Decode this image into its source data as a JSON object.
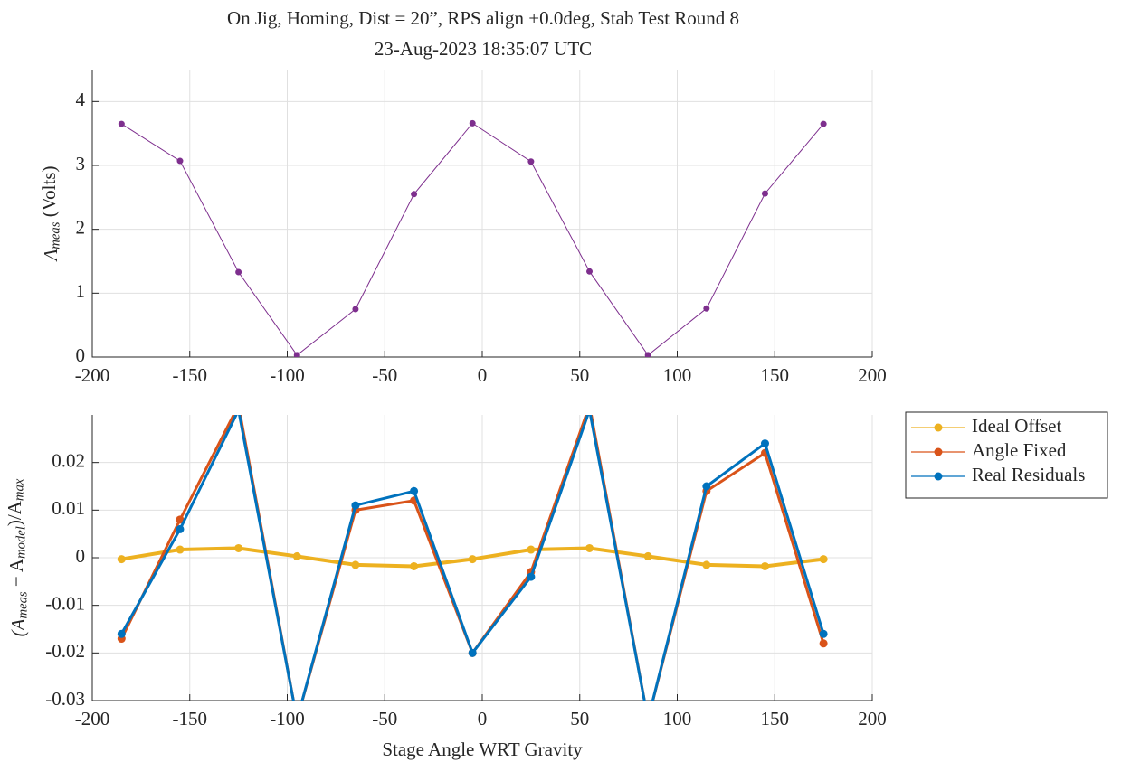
{
  "chart_data": [
    {
      "type": "line",
      "title": [
        "On Jig, Homing, Dist = 20”, RPS align +0.0deg, Stab Test Round 8",
        "23-Aug-2023 18:35:07 UTC"
      ],
      "y_label": [
        "A",
        "meas",
        " (Volts)"
      ],
      "x": [
        -185,
        -155,
        -125,
        -95,
        -65,
        -35,
        -5,
        25,
        55,
        85,
        115,
        145,
        175
      ],
      "series": [
        {
          "color": "#7e2f8e",
          "values": [
            3.65,
            3.07,
            1.33,
            0.03,
            0.75,
            2.55,
            3.66,
            3.06,
            1.34,
            0.03,
            0.76,
            2.56,
            3.65
          ]
        }
      ],
      "xlim": [
        -200,
        200
      ],
      "xticks": [
        -200,
        -150,
        -100,
        -50,
        0,
        50,
        100,
        150,
        200
      ],
      "ylim": [
        0,
        4.5
      ],
      "yticks": [
        0,
        1,
        2,
        3,
        4
      ],
      "grid": true
    },
    {
      "type": "line",
      "x_label": "Stage Angle WRT Gravity",
      "y_label": [
        "(A",
        "meas",
        " − A",
        "model",
        ")/A",
        "max"
      ],
      "x": [
        -185,
        -155,
        -125,
        -95,
        -65,
        -35,
        -5,
        25,
        55,
        85,
        115,
        145,
        175
      ],
      "series": [
        {
          "name": "Ideal Offset",
          "color": "#edb120",
          "values": [
            -0.0003,
            0.0017,
            0.002,
            0.0003,
            -0.0015,
            -0.0018,
            -0.0003,
            0.0017,
            0.002,
            0.0003,
            -0.0015,
            -0.0018,
            -0.0003
          ]
        },
        {
          "name": "Angle Fixed",
          "color": "#d95319",
          "values": [
            -0.017,
            0.008,
            0.032,
            -0.034,
            0.01,
            0.012,
            -0.02,
            -0.003,
            0.032,
            -0.034,
            0.014,
            0.022,
            -0.018
          ]
        },
        {
          "name": "Real Residuals",
          "color": "#0072bd",
          "values": [
            -0.016,
            0.006,
            0.031,
            -0.034,
            0.011,
            0.014,
            -0.02,
            -0.004,
            0.031,
            -0.034,
            0.015,
            0.024,
            -0.016
          ]
        }
      ],
      "xlim": [
        -200,
        200
      ],
      "xticks": [
        -200,
        -150,
        -100,
        -50,
        0,
        50,
        100,
        150,
        200
      ],
      "ylim": [
        -0.03,
        0.03
      ],
      "yticks": [
        -0.03,
        -0.02,
        -0.01,
        0,
        0.01,
        0.02
      ],
      "grid": true,
      "legend": "outside-right"
    }
  ]
}
